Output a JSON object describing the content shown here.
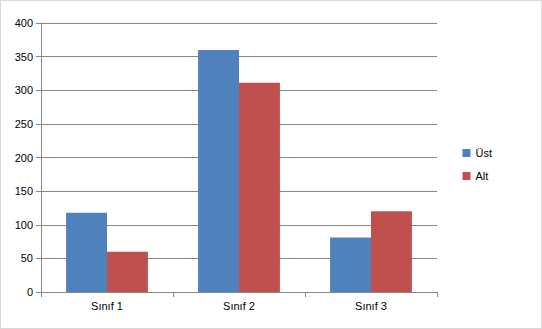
{
  "chart_data": {
    "type": "bar",
    "categories": [
      "Sınıf 1",
      "Sınıf 2",
      "Sınıf 3"
    ],
    "series": [
      {
        "name": "Üst",
        "color": "#4f81bd",
        "values": [
          118,
          360,
          81
        ]
      },
      {
        "name": "Alt",
        "color": "#c0504d",
        "values": [
          60,
          311,
          120
        ]
      }
    ],
    "ylim": [
      0,
      400
    ],
    "yticks": [
      0,
      50,
      100,
      150,
      200,
      250,
      300,
      350,
      400
    ],
    "grid": true,
    "legend": "right"
  }
}
